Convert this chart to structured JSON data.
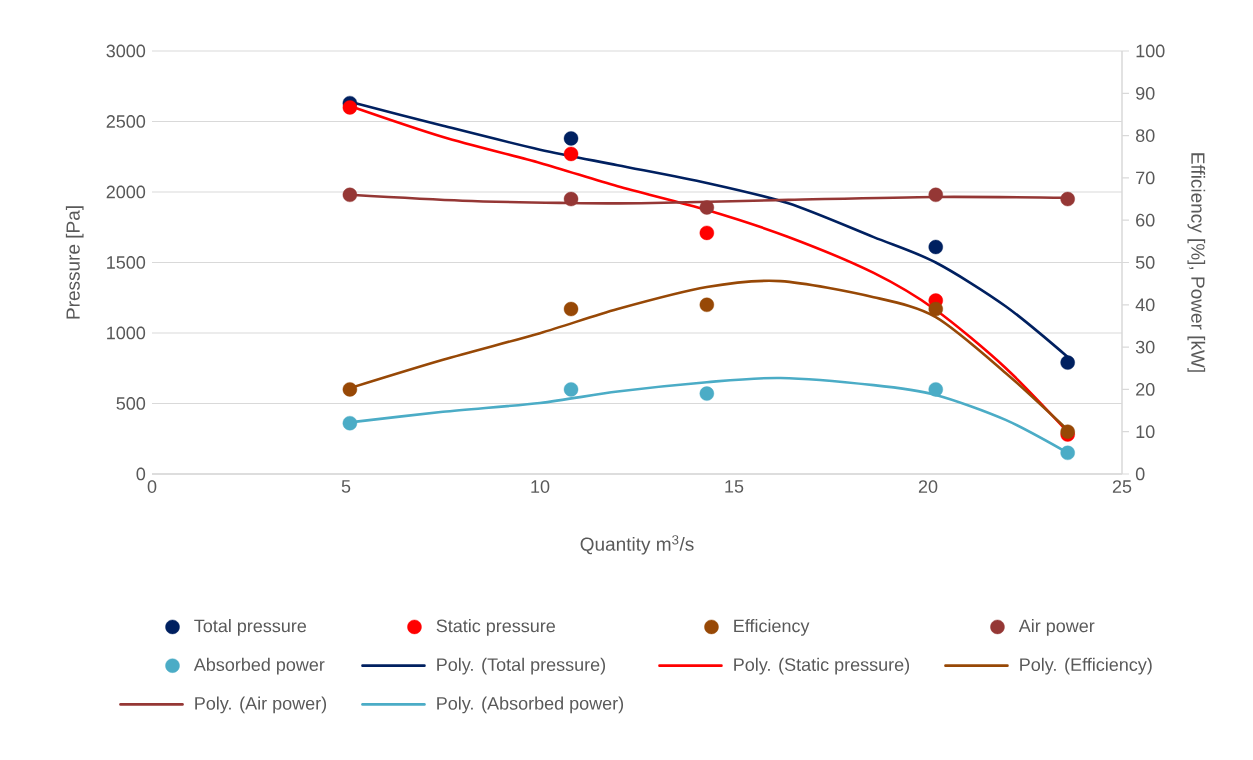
{
  "chart_data": {
    "type": "scatter",
    "xlabel": "Quantity m$^{3}$/s",
    "ylabel": "Pressure [Pa]",
    "y2label": "Efficiency [%], Power [kW]",
    "xlim": [
      0,
      25
    ],
    "xticks": [
      0,
      5,
      10,
      15,
      20,
      25
    ],
    "ylim": [
      0,
      3000
    ],
    "yticks": [
      0,
      500,
      1000,
      1500,
      2000,
      2500,
      3000
    ],
    "y2lim": [
      0,
      100
    ],
    "y2ticks": [
      0,
      10,
      20,
      30,
      40,
      50,
      60,
      70,
      80,
      90,
      100
    ],
    "grid": "y",
    "legend": "bottom",
    "marker": "circle",
    "series": [
      {
        "name": "Total pressure",
        "color": "#002060",
        "x": [
          5.1,
          10.8,
          20.2,
          23.6
        ],
        "values": [
          2630,
          2380,
          1610,
          790
        ]
      },
      {
        "name": "Static pressure",
        "color": "#ff0000",
        "x": [
          5.1,
          10.8,
          14.3,
          20.2,
          23.6
        ],
        "values": [
          2600,
          2270,
          1710,
          1230,
          280
        ]
      },
      {
        "name": "Efficiency",
        "color": "#974806",
        "axis": "y2",
        "x": [
          5.1,
          10.8,
          14.3,
          20.2,
          23.6
        ],
        "values": [
          20,
          39,
          40,
          39,
          10
        ]
      },
      {
        "name": "Air power",
        "color": "#953735",
        "axis": "y2",
        "x": [
          5.1,
          10.8,
          14.3,
          20.2,
          23.6
        ],
        "values": [
          66,
          65,
          63,
          66,
          65
        ]
      },
      {
        "name": "Absorbed power",
        "color": "#4bacc6",
        "axis": "y2",
        "x": [
          5.1,
          10.8,
          14.3,
          20.2,
          23.6
        ],
        "values": [
          12,
          20,
          19,
          20,
          5
        ]
      },
      {
        "name": "Poly. (Total pressure)",
        "type": "line",
        "marker": "none",
        "color": "#002060",
        "x": [
          5.1,
          7.5,
          10,
          12,
          14.3,
          16.4,
          18.6,
          20.2,
          22,
          23.6
        ],
        "values": [
          2640,
          2470,
          2300,
          2190,
          2064,
          1920,
          1680,
          1500,
          1190,
          830
        ]
      },
      {
        "name": "Poly. (Static pressure)",
        "type": "line",
        "marker": "none",
        "color": "#ff0000",
        "x": [
          5.1,
          7.5,
          10,
          12,
          14.3,
          16.4,
          18.6,
          20.2,
          22,
          23.6
        ],
        "values": [
          2610,
          2390,
          2206,
          2040,
          1872,
          1681,
          1426,
          1163,
          752,
          298
        ]
      },
      {
        "name": "Poly. (Efficiency)",
        "type": "line",
        "marker": "none",
        "color": "#974806",
        "axis": "y2",
        "x": [
          5.1,
          7.5,
          10,
          12,
          14.3,
          16.2,
          18.6,
          20.2,
          22,
          23.6
        ],
        "values": [
          20.3,
          27,
          33.3,
          39,
          44.2,
          45.6,
          41.8,
          37.1,
          23.9,
          10.4
        ]
      },
      {
        "name": "Poly. (Air power)",
        "type": "line",
        "marker": "none",
        "color": "#953735",
        "axis": "y2",
        "x": [
          5.1,
          8,
          10.5,
          12.6,
          16.4,
          20.2,
          23.6
        ],
        "values": [
          66,
          64.6,
          64.1,
          64,
          64.8,
          65.5,
          65.3
        ]
      },
      {
        "name": "Poly. (Absorbed power)",
        "type": "line",
        "marker": "none",
        "color": "#4bacc6",
        "axis": "y2",
        "x": [
          5.1,
          7.5,
          10,
          12,
          14.3,
          16.2,
          18.6,
          20.2,
          22,
          23.6
        ],
        "values": [
          12.2,
          14.7,
          16.8,
          19.5,
          21.7,
          22.7,
          21,
          18.7,
          12.8,
          5
        ]
      }
    ]
  }
}
